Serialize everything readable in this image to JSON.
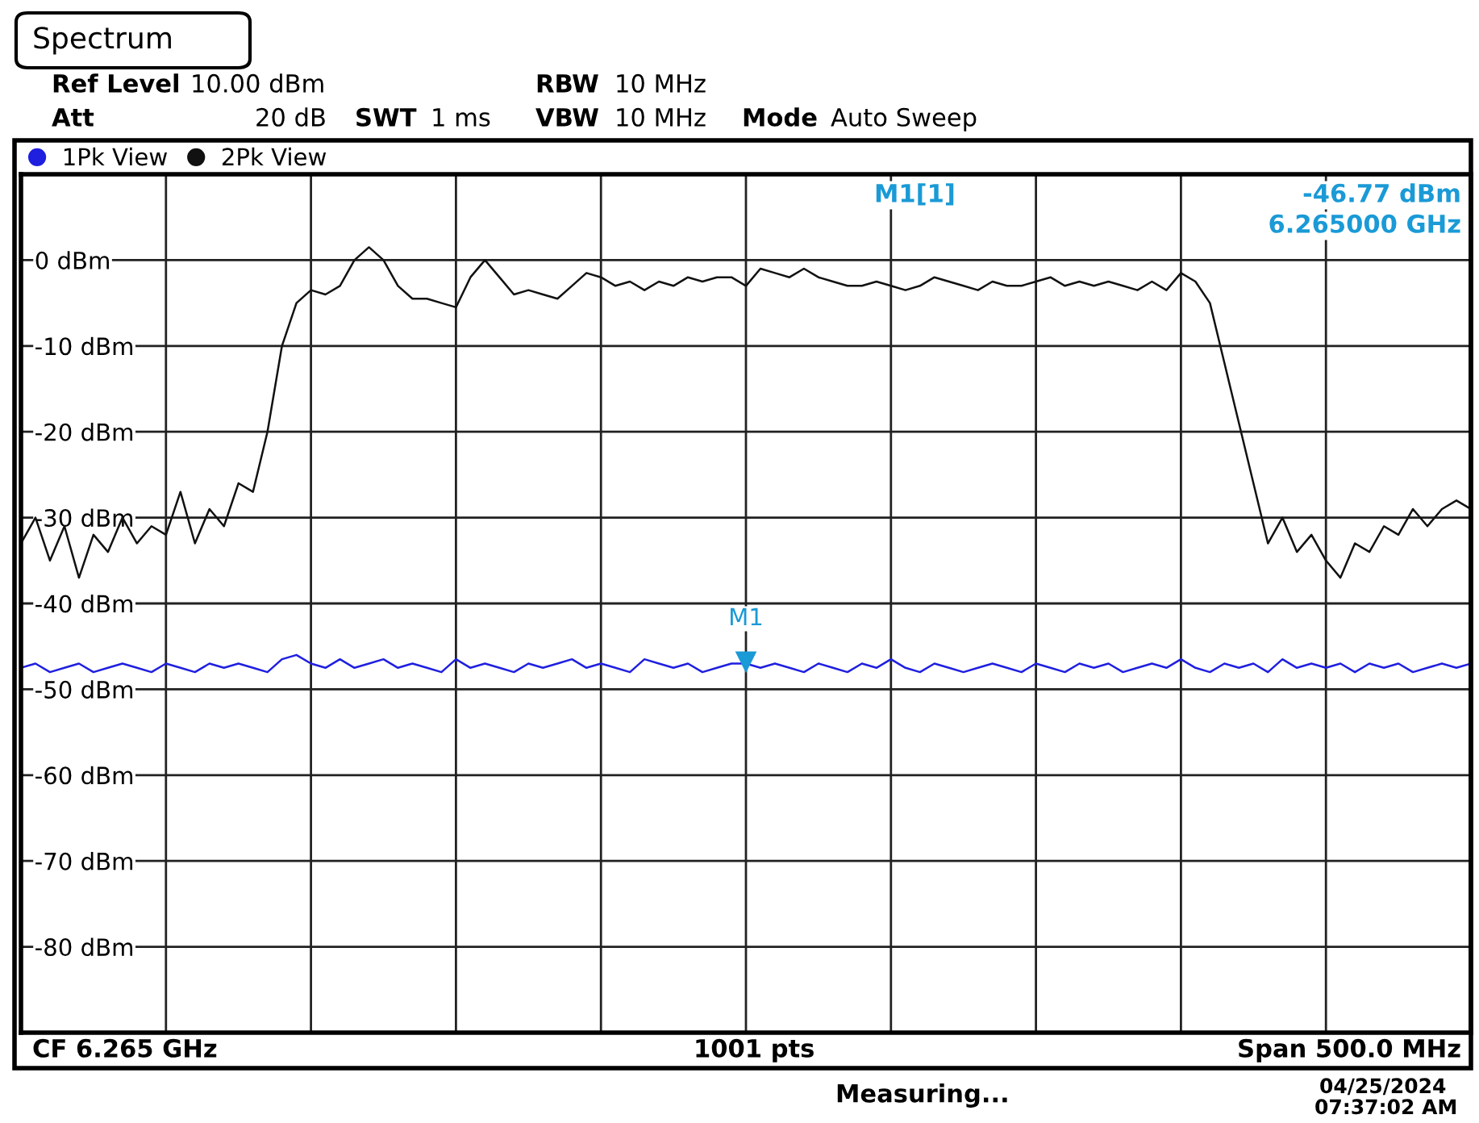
{
  "chart_data": {
    "type": "line",
    "title": "Spectrum",
    "categories": [
      null,
      null,
      null,
      null,
      null,
      null,
      null,
      null,
      null,
      null,
      null,
      null,
      null,
      null,
      null,
      null,
      null,
      null,
      null,
      null,
      null,
      null,
      null,
      null,
      null,
      null,
      null,
      null,
      null,
      null,
      null,
      null,
      null,
      null,
      null,
      null,
      null,
      null,
      null,
      null,
      null,
      null,
      null,
      null,
      null,
      null,
      null,
      null,
      null,
      null,
      null,
      null,
      null,
      null,
      null,
      null,
      null,
      null,
      null,
      null,
      null,
      null,
      null,
      null,
      null,
      null,
      null,
      null,
      null,
      null,
      null,
      null,
      null,
      null,
      null,
      null,
      null,
      null,
      null,
      null,
      null,
      null,
      null,
      null,
      null,
      null,
      null,
      null,
      null,
      null,
      null,
      null,
      null,
      null,
      null,
      null,
      null,
      null,
      null,
      null,
      null
    ],
    "series": [
      {
        "name": "1Pk View",
        "color": "#1f1fe0",
        "values": [
          -47.5,
          -47,
          -48,
          -47.5,
          -47,
          -48,
          -47.5,
          -47,
          -47.5,
          -48,
          -47,
          -47.5,
          -48,
          -47,
          -47.5,
          -47,
          -47.5,
          -48,
          -46.5,
          -46,
          -47,
          -47.5,
          -46.5,
          -47.5,
          -47,
          -46.5,
          -47.5,
          -47,
          -47.5,
          -48,
          -46.5,
          -47.5,
          -47,
          -47.5,
          -48,
          -47,
          -47.5,
          -47,
          -46.5,
          -47.5,
          -47,
          -47.5,
          -48,
          -46.5,
          -47,
          -47.5,
          -47,
          -48,
          -47.5,
          -47,
          -47,
          -47.5,
          -47,
          -47.5,
          -48,
          -47,
          -47.5,
          -48,
          -47,
          -47.5,
          -46.5,
          -47.5,
          -48,
          -47,
          -47.5,
          -48,
          -47.5,
          -47,
          -47.5,
          -48,
          -47,
          -47.5,
          -48,
          -47,
          -47.5,
          -47,
          -48,
          -47.5,
          -47,
          -47.5,
          -46.5,
          -47.5,
          -48,
          -47,
          -47.5,
          -47,
          -48,
          -46.5,
          -47.5,
          -47,
          -47.5,
          -47,
          -48,
          -47,
          -47.5,
          -47,
          -48,
          -47.5,
          -47,
          -47.5,
          -47
        ]
      },
      {
        "name": "2Pk View",
        "color": "#111111",
        "values": [
          -33,
          -30,
          -35,
          -31,
          -37,
          -32,
          -34,
          -30,
          -33,
          -31,
          -32,
          -27,
          -33,
          -29,
          -31,
          -26,
          -27,
          -20,
          -10,
          -5,
          -3.5,
          -4,
          -3,
          0,
          1.5,
          0,
          -3,
          -4.5,
          -4.5,
          -5,
          -5.5,
          -2,
          0,
          -2,
          -4,
          -3.5,
          -4,
          -4.5,
          -3,
          -1.5,
          -2,
          -3,
          -2.5,
          -3.5,
          -2.5,
          -3,
          -2,
          -2.5,
          -2,
          -2,
          -3,
          -1,
          -1.5,
          -2,
          -1,
          -2,
          -2.5,
          -3,
          -3,
          -2.5,
          -3,
          -3.5,
          -3,
          -2,
          -2.5,
          -3,
          -3.5,
          -2.5,
          -3,
          -3,
          -2.5,
          -2,
          -3,
          -2.5,
          -3,
          -2.5,
          -3,
          -3.5,
          -2.5,
          -3.5,
          -1.5,
          -2.5,
          -5,
          -12,
          -19,
          -26,
          -33,
          -30,
          -34,
          -32,
          -35,
          -37,
          -33,
          -34,
          -31,
          -32,
          -29,
          -31,
          -29,
          -28,
          -29
        ]
      }
    ],
    "ylim": [
      -90,
      10
    ],
    "yticks": [
      {
        "value": 0,
        "label": "0 dBm"
      },
      {
        "value": -10,
        "label": "-10 dBm"
      },
      {
        "value": -20,
        "label": "-20 dBm"
      },
      {
        "value": -30,
        "label": "-30 dBm"
      },
      {
        "value": -40,
        "label": "-40 dBm"
      },
      {
        "value": -50,
        "label": "-50 dBm"
      },
      {
        "value": -60,
        "label": "-60 dBm"
      },
      {
        "value": -70,
        "label": "-70 dBm"
      },
      {
        "value": -80,
        "label": "-80 dBm"
      }
    ],
    "tick_labels": "y",
    "grid": true,
    "legend": "top left",
    "marker": "none",
    "line_style": "solid",
    "annotations": [
      "Ref Level",
      "10.00 dBm",
      "Att",
      "20 dB",
      "SWT",
      "1 ms",
      "RBW",
      "10 MHz",
      "VBW",
      "10 MHz",
      "Mode",
      "Auto Sweep",
      "M1[1]",
      "-46.77 dBm",
      "6.265000 GHz",
      "CF 6.265 GHz",
      "1001 pts",
      "Span 500.0 MHz",
      "Measuring...",
      "04/25/2024",
      "07:37:02 AM",
      {
        "text": "M1",
        "y": -46.77
      }
    ]
  }
}
